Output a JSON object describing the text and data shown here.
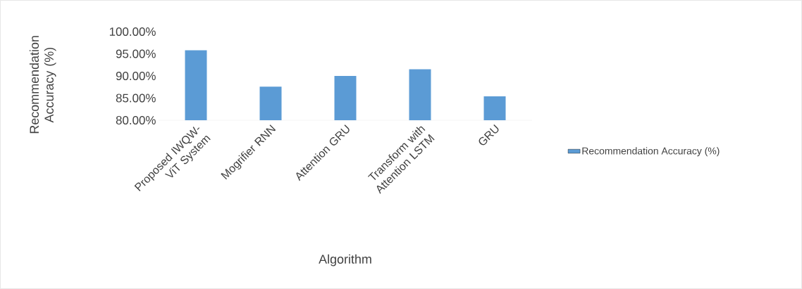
{
  "chart_data": {
    "type": "bar",
    "xlabel": "Algorithm",
    "ylabel": "Recommendation Accuracy (%)",
    "categories": [
      "Proposed IWQW-ViT System",
      "Mogrifier RNN",
      "Attention GRU",
      "Transform with Attention LSTM",
      "GRU"
    ],
    "series": [
      {
        "name": "Recommendation Accuracy (%)",
        "color": "#5b9bd5",
        "values": [
          95.8,
          87.6,
          90.0,
          91.5,
          85.4
        ]
      }
    ],
    "ylim": [
      80,
      100
    ],
    "yticks": [
      {
        "value": 80,
        "label": "80.00%"
      },
      {
        "value": 85,
        "label": "85.00%"
      },
      {
        "value": 90,
        "label": "90.00%"
      },
      {
        "value": 95,
        "label": "95.00%"
      },
      {
        "value": 100,
        "label": "100.00%"
      }
    ],
    "grid": false,
    "legend": "right"
  }
}
